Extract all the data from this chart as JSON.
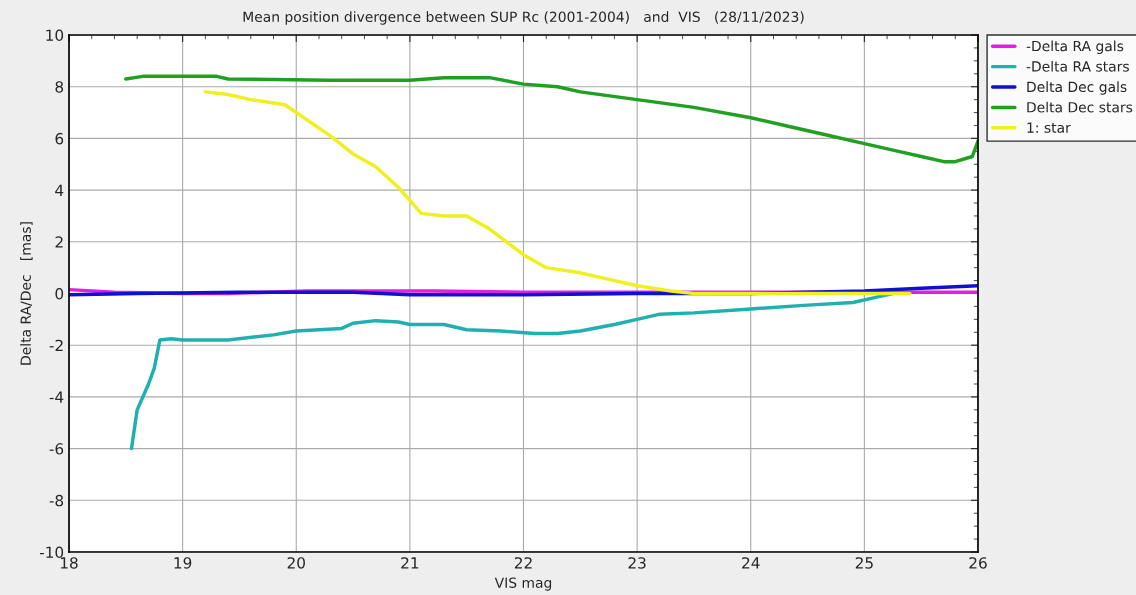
{
  "chart_data": {
    "type": "line",
    "title": "Mean position divergence between SUP Rc (2001-2004)   and  VIS   (28/11/2023)",
    "xlabel": "VIS mag",
    "ylabel": "Delta RA/Dec   [mas]",
    "xlim": [
      18,
      26
    ],
    "xticks": [
      18,
      19,
      20,
      21,
      22,
      23,
      24,
      25,
      26
    ],
    "ylim": [
      -10,
      10
    ],
    "yticks": [
      -10,
      -8,
      -6,
      -4,
      -2,
      0,
      2,
      4,
      6,
      8,
      10
    ],
    "grid": true,
    "legend": "top right",
    "series": [
      {
        "name": "-Delta RA gals",
        "color": "#e020e0",
        "x": [
          18,
          18.4,
          19.0,
          19.4,
          20.1,
          21.2,
          22.0,
          23.5,
          25.0,
          26.0
        ],
        "values": [
          0.15,
          0.05,
          0.0,
          0.0,
          0.1,
          0.1,
          0.05,
          0.05,
          0.05,
          0.05
        ]
      },
      {
        "name": "-Delta RA stars",
        "color": "#20b0b0",
        "x": [
          18.55,
          18.6,
          18.7,
          18.75,
          18.8,
          18.9,
          19.0,
          19.4,
          19.8,
          20.0,
          20.4,
          20.5,
          20.7,
          20.9,
          21.0,
          21.3,
          21.5,
          21.8,
          22.1,
          22.3,
          22.5,
          22.8,
          23.0,
          23.2,
          23.5,
          24.0,
          24.5,
          24.9,
          25.1,
          25.25
        ],
        "values": [
          -6.0,
          -4.5,
          -3.5,
          -2.9,
          -1.8,
          -1.75,
          -1.8,
          -1.8,
          -1.6,
          -1.45,
          -1.35,
          -1.15,
          -1.05,
          -1.1,
          -1.2,
          -1.2,
          -1.4,
          -1.45,
          -1.55,
          -1.55,
          -1.45,
          -1.2,
          -1.0,
          -0.8,
          -0.75,
          -0.6,
          -0.45,
          -0.35,
          -0.15,
          0.0
        ]
      },
      {
        "name": "Delta Dec gals",
        "color": "#1010d0",
        "x": [
          18,
          18.6,
          19.5,
          20.5,
          21.0,
          22.0,
          23.0,
          24.0,
          25.0,
          25.5,
          26.0
        ],
        "values": [
          -0.05,
          0.0,
          0.05,
          0.05,
          -0.05,
          -0.05,
          0.0,
          0.0,
          0.1,
          0.2,
          0.3
        ]
      },
      {
        "name": "Delta Dec stars",
        "color": "#20a020",
        "x": [
          18.5,
          18.65,
          19.3,
          19.4,
          20.3,
          21.0,
          21.3,
          21.7,
          22.0,
          22.3,
          22.5,
          23.0,
          23.5,
          24.0,
          24.3,
          24.6,
          25.0,
          25.3,
          25.5,
          25.7,
          25.8,
          25.95,
          26.0
        ],
        "values": [
          8.3,
          8.4,
          8.4,
          8.3,
          8.25,
          8.25,
          8.35,
          8.35,
          8.1,
          8.0,
          7.8,
          7.5,
          7.2,
          6.8,
          6.5,
          6.2,
          5.8,
          5.5,
          5.3,
          5.1,
          5.1,
          5.3,
          5.9
        ]
      },
      {
        "name": "1: star",
        "color": "#f0f020",
        "x": [
          19.2,
          19.4,
          19.6,
          19.9,
          20.0,
          20.3,
          20.5,
          20.7,
          20.9,
          21.1,
          21.3,
          21.5,
          21.7,
          22.0,
          22.2,
          22.5,
          22.8,
          23.0,
          23.3,
          23.5,
          25.4
        ],
        "values": [
          7.8,
          7.7,
          7.5,
          7.3,
          7.0,
          6.1,
          5.4,
          4.9,
          4.1,
          3.1,
          3.0,
          3.0,
          2.5,
          1.5,
          1.0,
          0.8,
          0.5,
          0.3,
          0.1,
          0.0,
          0.0
        ]
      }
    ]
  }
}
